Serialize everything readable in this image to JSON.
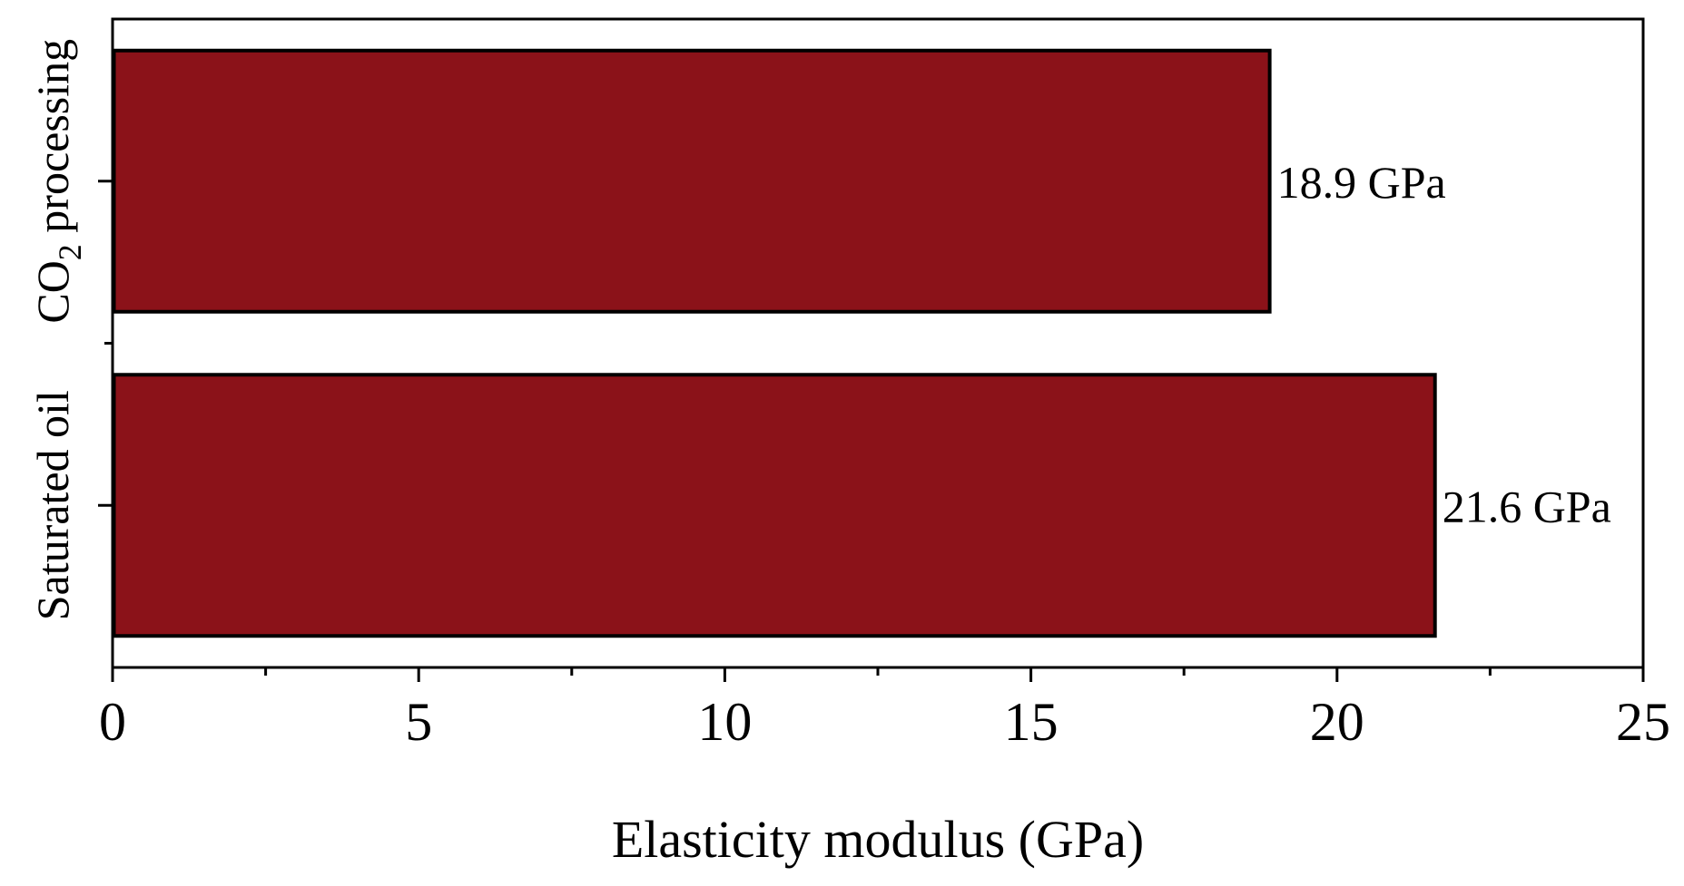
{
  "chart_data": {
    "type": "bar",
    "orientation": "horizontal",
    "categories": [
      "CO2 processing",
      "Saturated oil"
    ],
    "category_labels": [
      {
        "text": "CO",
        "sub": "2",
        "rest": " processing"
      },
      {
        "text": "Saturated oil",
        "sub": "",
        "rest": ""
      }
    ],
    "values": [
      18.9,
      21.6
    ],
    "data_labels": [
      "18.9 GPa",
      "21.6 GPa"
    ],
    "title": "",
    "xlabel": "Elasticity modulus (GPa)",
    "ylabel": "",
    "xlim": [
      0,
      25
    ],
    "xticks": [
      "0",
      "5",
      "10",
      "15",
      "20",
      "25"
    ],
    "grid": false,
    "legend": "none",
    "colors": {
      "bar_fill": "#8b1219",
      "bar_edge": "#000000",
      "axis": "#000000"
    }
  }
}
